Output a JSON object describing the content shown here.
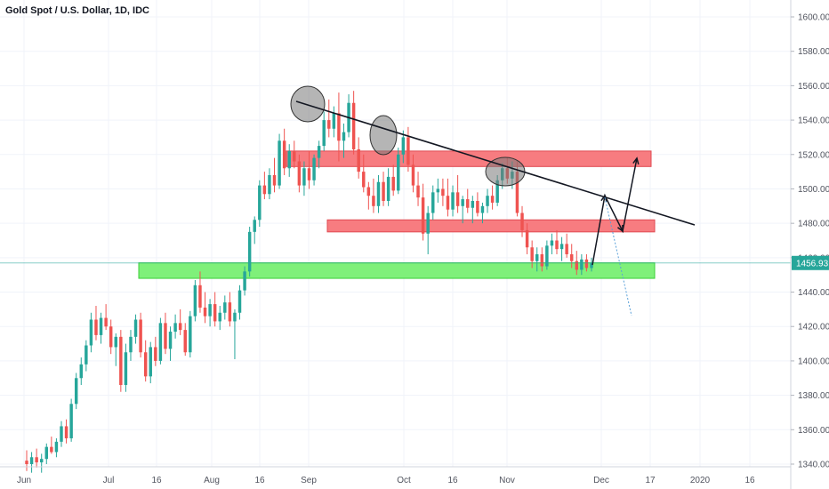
{
  "title": "Gold Spot / U.S. Dollar, 1D, IDC",
  "chart_data": {
    "type": "candlestick",
    "symbol": "Gold Spot / U.S. Dollar",
    "interval": "1D",
    "source": "IDC",
    "ylim": [
      1340,
      1600
    ],
    "y_ticks": [
      "1340.00",
      "1360.00",
      "1380.00",
      "1400.00",
      "1420.00",
      "1440.00",
      "1460.00",
      "1480.00",
      "1500.00",
      "1520.00",
      "1540.00",
      "1560.00",
      "1580.00",
      "1600.00"
    ],
    "x_ticks": [
      "Jun",
      "Jul",
      "16",
      "Aug",
      "16",
      "Sep",
      "Oct",
      "16",
      "Nov",
      "Dec",
      "17",
      "2020",
      "16"
    ],
    "last_price": "1456.93",
    "candles": [
      [
        1342,
        1348,
        1336,
        1340
      ],
      [
        1340,
        1347,
        1335,
        1344
      ],
      [
        1344,
        1349,
        1338,
        1341
      ],
      [
        1341,
        1346,
        1335,
        1343
      ],
      [
        1343,
        1352,
        1340,
        1350
      ],
      [
        1350,
        1356,
        1346,
        1347
      ],
      [
        1347,
        1355,
        1344,
        1353
      ],
      [
        1353,
        1365,
        1350,
        1362
      ],
      [
        1362,
        1366,
        1352,
        1355
      ],
      [
        1355,
        1378,
        1353,
        1375
      ],
      [
        1375,
        1393,
        1372,
        1390
      ],
      [
        1390,
        1402,
        1386,
        1398
      ],
      [
        1398,
        1412,
        1394,
        1409
      ],
      [
        1409,
        1428,
        1405,
        1424
      ],
      [
        1424,
        1432,
        1412,
        1415
      ],
      [
        1415,
        1428,
        1410,
        1425
      ],
      [
        1425,
        1433,
        1418,
        1420
      ],
      [
        1420,
        1424,
        1404,
        1408
      ],
      [
        1408,
        1416,
        1397,
        1414
      ],
      [
        1414,
        1418,
        1382,
        1386
      ],
      [
        1386,
        1410,
        1382,
        1405
      ],
      [
        1405,
        1418,
        1400,
        1414
      ],
      [
        1414,
        1427,
        1410,
        1424
      ],
      [
        1424,
        1428,
        1402,
        1405
      ],
      [
        1405,
        1412,
        1388,
        1391
      ],
      [
        1391,
        1411,
        1387,
        1408
      ],
      [
        1408,
        1414,
        1397,
        1400
      ],
      [
        1400,
        1425,
        1398,
        1422
      ],
      [
        1422,
        1428,
        1404,
        1407
      ],
      [
        1407,
        1420,
        1400,
        1417
      ],
      [
        1417,
        1427,
        1413,
        1422
      ],
      [
        1422,
        1430,
        1415,
        1418
      ],
      [
        1418,
        1422,
        1403,
        1405
      ],
      [
        1405,
        1429,
        1402,
        1426
      ],
      [
        1426,
        1447,
        1423,
        1444
      ],
      [
        1444,
        1452,
        1428,
        1431
      ],
      [
        1431,
        1440,
        1422,
        1426
      ],
      [
        1426,
        1436,
        1420,
        1433
      ],
      [
        1433,
        1440,
        1420,
        1423
      ],
      [
        1423,
        1432,
        1418,
        1428
      ],
      [
        1428,
        1438,
        1424,
        1434
      ],
      [
        1434,
        1440,
        1420,
        1423
      ],
      [
        1423,
        1430,
        1401,
        1428
      ],
      [
        1428,
        1444,
        1424,
        1441
      ],
      [
        1441,
        1455,
        1438,
        1452
      ],
      [
        1452,
        1478,
        1449,
        1475
      ],
      [
        1475,
        1484,
        1468,
        1482
      ],
      [
        1482,
        1505,
        1478,
        1502
      ],
      [
        1502,
        1510,
        1494,
        1497
      ],
      [
        1497,
        1512,
        1494,
        1508
      ],
      [
        1508,
        1518,
        1498,
        1502
      ],
      [
        1502,
        1532,
        1500,
        1528
      ],
      [
        1528,
        1535,
        1508,
        1512
      ],
      [
        1512,
        1526,
        1507,
        1522
      ],
      [
        1522,
        1528,
        1512,
        1516
      ],
      [
        1516,
        1520,
        1498,
        1502
      ],
      [
        1502,
        1516,
        1496,
        1512
      ],
      [
        1512,
        1522,
        1500,
        1505
      ],
      [
        1505,
        1520,
        1502,
        1518
      ],
      [
        1518,
        1528,
        1512,
        1525
      ],
      [
        1525,
        1545,
        1522,
        1540
      ],
      [
        1540,
        1552,
        1530,
        1535
      ],
      [
        1535,
        1548,
        1530,
        1544
      ],
      [
        1544,
        1556,
        1516,
        1528
      ],
      [
        1528,
        1538,
        1518,
        1533
      ],
      [
        1533,
        1555,
        1530,
        1550
      ],
      [
        1550,
        1557,
        1520,
        1523
      ],
      [
        1523,
        1530,
        1506,
        1510
      ],
      [
        1510,
        1520,
        1498,
        1501
      ],
      [
        1501,
        1504,
        1488,
        1496
      ],
      [
        1496,
        1506,
        1486,
        1490
      ],
      [
        1490,
        1508,
        1486,
        1504
      ],
      [
        1504,
        1510,
        1490,
        1493
      ],
      [
        1493,
        1512,
        1490,
        1507
      ],
      [
        1507,
        1514,
        1496,
        1499
      ],
      [
        1499,
        1524,
        1497,
        1520
      ],
      [
        1520,
        1534,
        1515,
        1530
      ],
      [
        1530,
        1536,
        1510,
        1514
      ],
      [
        1514,
        1520,
        1498,
        1502
      ],
      [
        1502,
        1510,
        1490,
        1495
      ],
      [
        1495,
        1503,
        1470,
        1474
      ],
      [
        1474,
        1490,
        1462,
        1486
      ],
      [
        1486,
        1502,
        1482,
        1498
      ],
      [
        1498,
        1506,
        1492,
        1500
      ],
      [
        1500,
        1506,
        1490,
        1496
      ],
      [
        1496,
        1506,
        1484,
        1488
      ],
      [
        1488,
        1502,
        1484,
        1498
      ],
      [
        1498,
        1508,
        1486,
        1490
      ],
      [
        1490,
        1496,
        1480,
        1494
      ],
      [
        1494,
        1500,
        1486,
        1489
      ],
      [
        1489,
        1496,
        1480,
        1493
      ],
      [
        1493,
        1498,
        1484,
        1486
      ],
      [
        1486,
        1492,
        1480,
        1490
      ],
      [
        1490,
        1500,
        1486,
        1496
      ],
      [
        1496,
        1502,
        1488,
        1492
      ],
      [
        1492,
        1508,
        1490,
        1505
      ],
      [
        1505,
        1515,
        1500,
        1512
      ],
      [
        1512,
        1518,
        1503,
        1506
      ],
      [
        1506,
        1516,
        1500,
        1510
      ],
      [
        1510,
        1516,
        1484,
        1486
      ],
      [
        1486,
        1490,
        1472,
        1476
      ],
      [
        1476,
        1480,
        1462,
        1466
      ],
      [
        1466,
        1470,
        1454,
        1458
      ],
      [
        1458,
        1466,
        1452,
        1462
      ],
      [
        1462,
        1466,
        1452,
        1455
      ],
      [
        1455,
        1470,
        1453,
        1467
      ],
      [
        1467,
        1474,
        1462,
        1470
      ],
      [
        1470,
        1476,
        1462,
        1465
      ],
      [
        1465,
        1472,
        1458,
        1468
      ],
      [
        1468,
        1474,
        1460,
        1462
      ],
      [
        1462,
        1468,
        1454,
        1458
      ],
      [
        1458,
        1464,
        1450,
        1453
      ],
      [
        1453,
        1462,
        1450,
        1459
      ],
      [
        1459,
        1462,
        1452,
        1454
      ],
      [
        1454,
        1460,
        1452,
        1457
      ]
    ],
    "zones": [
      {
        "kind": "resistance",
        "top": 1522,
        "bottom": 1513
      },
      {
        "kind": "resistance",
        "top": 1482,
        "bottom": 1475
      },
      {
        "kind": "support",
        "top": 1457,
        "bottom": 1448
      }
    ],
    "colors": {
      "up": "#26a69a",
      "down": "#ef5350",
      "resistance_fill": "#f77c80",
      "support_fill": "#7ff07a",
      "trendline": "#131722",
      "price_line": "#26a69a"
    }
  }
}
